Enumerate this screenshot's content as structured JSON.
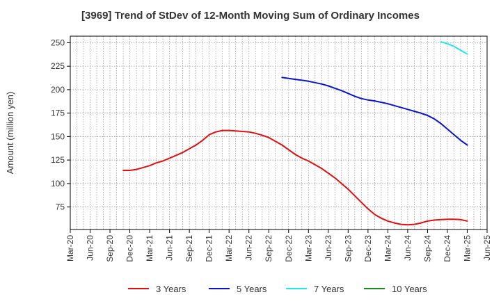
{
  "chart_data": {
    "type": "line",
    "title": "[3969]  Trend of StDev of 12-Month Moving Sum of Ordinary Incomes",
    "xlabel": "",
    "ylabel": "Amount (million yen)",
    "x_ticks": [
      "Mar-20",
      "Jun-20",
      "Sep-20",
      "Dec-20",
      "Mar-21",
      "Jun-21",
      "Sep-21",
      "Dec-21",
      "Mar-22",
      "Jun-22",
      "Sep-22",
      "Dec-22",
      "Mar-23",
      "Jun-23",
      "Sep-23",
      "Dec-23",
      "Mar-24",
      "Jun-24",
      "Sep-24",
      "Dec-24",
      "Mar-25",
      "Jun-25"
    ],
    "y_ticks": [
      75,
      100,
      125,
      150,
      175,
      200,
      225,
      250
    ],
    "ylim": [
      51,
      257
    ],
    "grid": true,
    "legend_position": "bottom",
    "series": [
      {
        "name": "3 Years",
        "color": "#dd1111",
        "points": [
          [
            "Nov-20",
            114
          ],
          [
            "Dec-20",
            114
          ],
          [
            "Jan-21",
            115
          ],
          [
            "Feb-21",
            117
          ],
          [
            "Mar-21",
            119
          ],
          [
            "Apr-21",
            122
          ],
          [
            "May-21",
            124
          ],
          [
            "Jun-21",
            127
          ],
          [
            "Jul-21",
            130
          ],
          [
            "Aug-21",
            133
          ],
          [
            "Sep-21",
            137
          ],
          [
            "Oct-21",
            141
          ],
          [
            "Nov-21",
            146
          ],
          [
            "Dec-21",
            152
          ],
          [
            "Jan-22",
            155
          ],
          [
            "Feb-22",
            156.5
          ],
          [
            "Mar-22",
            156.5
          ],
          [
            "Apr-22",
            156
          ],
          [
            "May-22",
            155.5
          ],
          [
            "Jun-22",
            155
          ],
          [
            "Jul-22",
            153.5
          ],
          [
            "Aug-22",
            151.5
          ],
          [
            "Sep-22",
            149
          ],
          [
            "Oct-22",
            145
          ],
          [
            "Nov-22",
            141
          ],
          [
            "Dec-22",
            136
          ],
          [
            "Jan-23",
            131
          ],
          [
            "Feb-23",
            127
          ],
          [
            "Mar-23",
            124
          ],
          [
            "Apr-23",
            120
          ],
          [
            "May-23",
            116
          ],
          [
            "Jun-23",
            111
          ],
          [
            "Jul-23",
            106
          ],
          [
            "Aug-23",
            100
          ],
          [
            "Sep-23",
            94
          ],
          [
            "Oct-23",
            87
          ],
          [
            "Nov-23",
            80
          ],
          [
            "Dec-23",
            73
          ],
          [
            "Jan-24",
            67
          ],
          [
            "Feb-24",
            63
          ],
          [
            "Mar-24",
            60
          ],
          [
            "Apr-24",
            58
          ],
          [
            "May-24",
            56.5
          ],
          [
            "Jun-24",
            56
          ],
          [
            "Jul-24",
            56.5
          ],
          [
            "Aug-24",
            58
          ],
          [
            "Sep-24",
            60
          ],
          [
            "Oct-24",
            61
          ],
          [
            "Nov-24",
            61.5
          ],
          [
            "Dec-24",
            62
          ],
          [
            "Jan-25",
            62
          ],
          [
            "Feb-25",
            61.5
          ],
          [
            "Mar-25",
            60
          ]
        ]
      },
      {
        "name": "5 Years",
        "color": "#0a14c8",
        "points": [
          [
            "Nov-22",
            213
          ],
          [
            "Dec-22",
            212
          ],
          [
            "Jan-23",
            211
          ],
          [
            "Feb-23",
            210
          ],
          [
            "Mar-23",
            209
          ],
          [
            "Apr-23",
            207.5
          ],
          [
            "May-23",
            206
          ],
          [
            "Jun-23",
            204
          ],
          [
            "Jul-23",
            201.5
          ],
          [
            "Aug-23",
            199
          ],
          [
            "Sep-23",
            196
          ],
          [
            "Oct-23",
            193
          ],
          [
            "Nov-23",
            190.5
          ],
          [
            "Dec-23",
            189
          ],
          [
            "Jan-24",
            188
          ],
          [
            "Feb-24",
            186.5
          ],
          [
            "Mar-24",
            185
          ],
          [
            "Apr-24",
            183
          ],
          [
            "May-24",
            181
          ],
          [
            "Jun-24",
            179
          ],
          [
            "Jul-24",
            177
          ],
          [
            "Aug-24",
            175
          ],
          [
            "Sep-24",
            172.5
          ],
          [
            "Oct-24",
            169
          ],
          [
            "Nov-24",
            164
          ],
          [
            "Dec-24",
            158
          ],
          [
            "Jan-25",
            152
          ],
          [
            "Feb-25",
            146
          ],
          [
            "Mar-25",
            141
          ]
        ]
      },
      {
        "name": "7 Years",
        "color": "#22e5ee",
        "points": [
          [
            "Nov-24",
            251
          ],
          [
            "Dec-24",
            249
          ],
          [
            "Jan-25",
            246
          ],
          [
            "Feb-25",
            242
          ],
          [
            "Mar-25",
            238
          ]
        ]
      },
      {
        "name": "10 Years",
        "color": "#1a8a1a",
        "points": []
      }
    ]
  }
}
